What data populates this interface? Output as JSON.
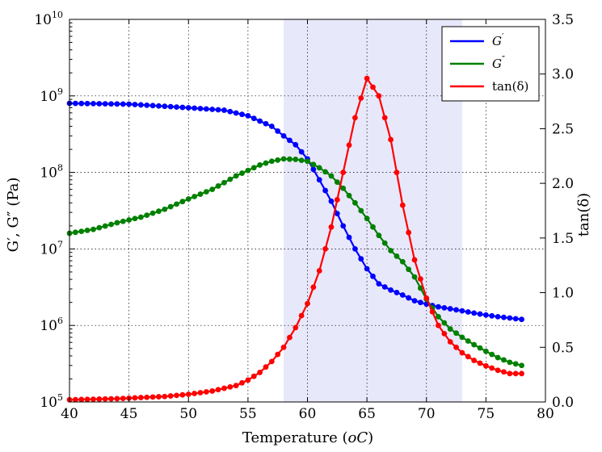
{
  "chart_data": {
    "type": "line",
    "xlabel": "Temperature (",
    "xlabel_unit": "oC",
    "xlabel_close": ")",
    "ylabel_left": "G′, G″ (Pa)",
    "ylabel_right": "tan(δ)",
    "xlim": [
      40,
      80
    ],
    "ylim_left": [
      100000,
      10000000000
    ],
    "ylim_right": [
      0,
      3.5
    ],
    "yscale_left": "log",
    "grid": true,
    "legend_position": "top-right",
    "x_ticks": [
      "40",
      "45",
      "50",
      "55",
      "60",
      "65",
      "70",
      "75",
      "80"
    ],
    "y_left_tick_base": "10",
    "y_left_tick_exponents": [
      "5",
      "6",
      "7",
      "8",
      "9",
      "10"
    ],
    "y_right_ticks": [
      "0.0",
      "0.5",
      "1.0",
      "1.5",
      "2.0",
      "2.5",
      "3.0",
      "3.5"
    ],
    "shaded_region": {
      "x_start": 58,
      "x_end": 73,
      "color": "#e8e8fb"
    },
    "series": [
      {
        "name": "G′",
        "legend_base": "G",
        "legend_mark": "′",
        "axis": "left",
        "color": "#0000ff",
        "key_points": [
          [
            40,
            800000000
          ],
          [
            45,
            780000000
          ],
          [
            50,
            700000000
          ],
          [
            53,
            650000000
          ],
          [
            55,
            550000000
          ],
          [
            57,
            400000000
          ],
          [
            58,
            300000000
          ],
          [
            59,
            230000000
          ],
          [
            60,
            150000000
          ],
          [
            61,
            80000000
          ],
          [
            62,
            42000000
          ],
          [
            63,
            20000000
          ],
          [
            64,
            10000000
          ],
          [
            65,
            5500000
          ],
          [
            66,
            3500000
          ],
          [
            67,
            2900000
          ],
          [
            68,
            2500000
          ],
          [
            69,
            2100000
          ],
          [
            70,
            1900000
          ],
          [
            71,
            1750000
          ],
          [
            72,
            1650000
          ],
          [
            73,
            1550000
          ],
          [
            74,
            1450000
          ],
          [
            75,
            1370000
          ],
          [
            76,
            1300000
          ],
          [
            77,
            1250000
          ],
          [
            78,
            1200000
          ]
        ]
      },
      {
        "name": "G″",
        "legend_base": "G",
        "legend_mark": "″",
        "axis": "left",
        "color": "#008000",
        "key_points": [
          [
            40,
            16000000
          ],
          [
            42,
            18000000
          ],
          [
            44,
            22000000
          ],
          [
            46,
            26000000
          ],
          [
            48,
            33000000
          ],
          [
            50,
            45000000
          ],
          [
            52,
            60000000
          ],
          [
            54,
            90000000
          ],
          [
            56,
            125000000
          ],
          [
            57,
            140000000
          ],
          [
            58,
            150000000
          ],
          [
            59,
            148000000
          ],
          [
            60,
            140000000
          ],
          [
            61,
            115000000
          ],
          [
            62,
            90000000
          ],
          [
            63,
            62000000
          ],
          [
            64,
            40000000
          ],
          [
            65,
            25000000
          ],
          [
            66,
            15000000
          ],
          [
            67,
            9500000
          ],
          [
            68,
            6800000
          ],
          [
            69,
            4300000
          ],
          [
            70,
            2200000
          ],
          [
            71,
            1300000
          ],
          [
            72,
            900000
          ],
          [
            73,
            700000
          ],
          [
            74,
            560000
          ],
          [
            75,
            460000
          ],
          [
            76,
            380000
          ],
          [
            77,
            330000
          ],
          [
            78,
            300000
          ]
        ]
      },
      {
        "name": "tan(δ)",
        "legend_base": "tan(δ)",
        "legend_mark": "",
        "axis": "right",
        "color": "#ff0000",
        "key_points": [
          [
            40,
            0.02
          ],
          [
            44,
            0.03
          ],
          [
            48,
            0.05
          ],
          [
            50,
            0.07
          ],
          [
            52,
            0.1
          ],
          [
            54,
            0.15
          ],
          [
            55,
            0.2
          ],
          [
            56,
            0.27
          ],
          [
            57,
            0.37
          ],
          [
            58,
            0.5
          ],
          [
            59,
            0.68
          ],
          [
            60,
            0.9
          ],
          [
            61,
            1.2
          ],
          [
            62,
            1.6
          ],
          [
            63,
            2.1
          ],
          [
            64,
            2.6
          ],
          [
            65,
            2.96
          ],
          [
            66,
            2.8
          ],
          [
            67,
            2.4
          ],
          [
            68,
            1.8
          ],
          [
            69,
            1.3
          ],
          [
            70,
            0.95
          ],
          [
            71,
            0.7
          ],
          [
            72,
            0.55
          ],
          [
            73,
            0.45
          ],
          [
            74,
            0.38
          ],
          [
            75,
            0.33
          ],
          [
            76,
            0.29
          ],
          [
            77,
            0.26
          ],
          [
            78,
            0.26
          ]
        ]
      }
    ]
  }
}
